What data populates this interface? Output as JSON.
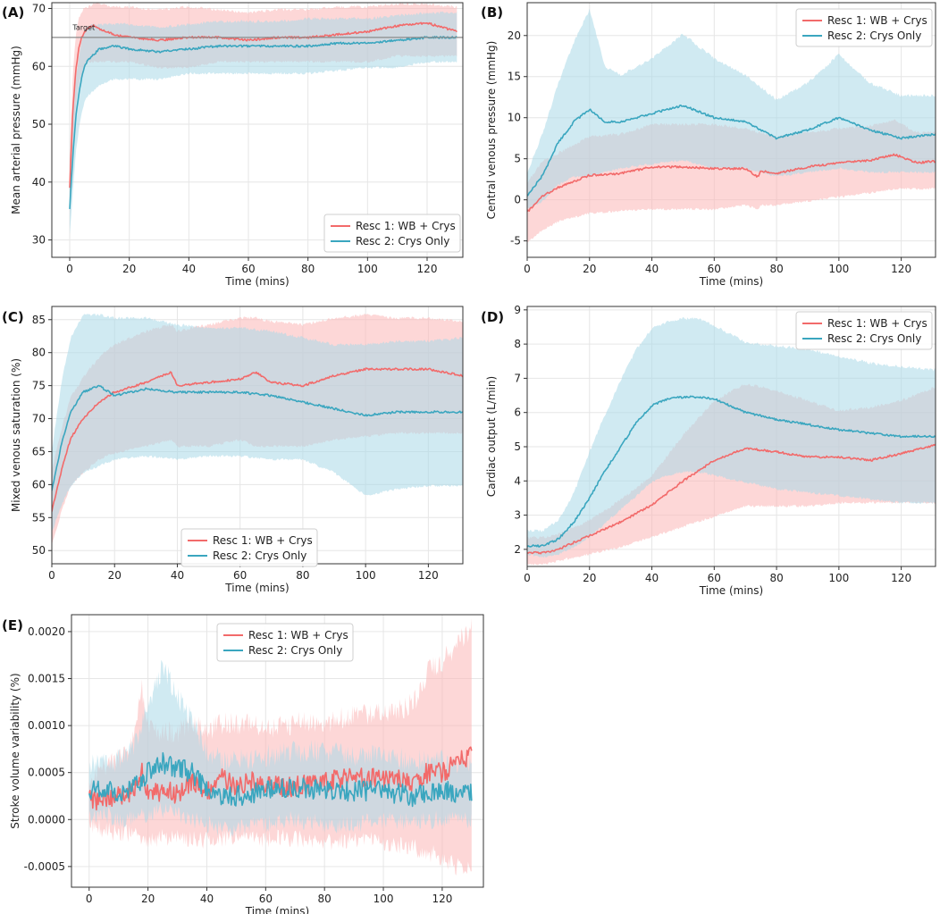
{
  "figure": {
    "colors": {
      "series1": "#f26a6a",
      "series2": "#3aa6bf",
      "band1": "#fbb6b6",
      "band2": "#a9d9e8"
    }
  },
  "chart_data": [
    {
      "id": "A",
      "panel_label": "(A)",
      "type": "line",
      "xlabel": "Time (mins)",
      "ylabel": "Mean arterial pressure (mmHg)",
      "xlim": [
        -6,
        132
      ],
      "ylim": [
        27,
        71
      ],
      "xticks": [
        0,
        20,
        40,
        60,
        80,
        100,
        120
      ],
      "yticks": [
        30,
        40,
        50,
        60,
        70
      ],
      "grid": true,
      "legend_position": "bottom-right",
      "annotation": {
        "text": "Target",
        "x": 1,
        "y": 66.3
      },
      "reference_line": {
        "y": 65,
        "label": "Target"
      },
      "series": [
        {
          "name": "Resc 1: WB + Crys",
          "color": "#f26a6a",
          "band_color": "#fbb6b6",
          "x": [
            0,
            1,
            2,
            3,
            4,
            5,
            6,
            8,
            10,
            15,
            20,
            30,
            40,
            50,
            60,
            70,
            80,
            90,
            100,
            110,
            120,
            130
          ],
          "mean": [
            39,
            52,
            59,
            63,
            65,
            66,
            66.5,
            67,
            66.5,
            65.5,
            65,
            64.5,
            65,
            65,
            64.5,
            65,
            65,
            65.5,
            66,
            67,
            67.5,
            66
          ],
          "lower": [
            34,
            46,
            53,
            57,
            59,
            60,
            61,
            61,
            61,
            61,
            61,
            60,
            60,
            61,
            61,
            61,
            61,
            61,
            61,
            62,
            62,
            62
          ],
          "upper": [
            44,
            58,
            65,
            68,
            69,
            70,
            70,
            70.5,
            70.5,
            70,
            70,
            69.5,
            70,
            69.5,
            69,
            69.5,
            69.5,
            70,
            70,
            70.5,
            70.5,
            70
          ]
        },
        {
          "name": "Resc 2: Crys Only",
          "color": "#3aa6bf",
          "band_color": "#a9d9e8",
          "x": [
            0,
            1,
            2,
            3,
            4,
            5,
            6,
            8,
            10,
            15,
            20,
            30,
            40,
            50,
            60,
            70,
            80,
            90,
            100,
            110,
            120,
            130
          ],
          "mean": [
            35.5,
            44,
            51,
            55,
            58,
            60,
            61,
            62,
            63,
            63.5,
            63,
            62.5,
            63,
            63.5,
            63.5,
            63.5,
            63.5,
            64,
            64,
            64.5,
            65,
            65
          ],
          "lower": [
            31,
            38,
            45,
            49,
            52,
            54,
            55,
            56,
            57,
            58,
            58,
            58,
            59,
            59,
            59,
            59,
            59,
            59.5,
            60,
            60,
            61,
            61
          ],
          "upper": [
            40,
            50,
            57,
            61,
            64,
            66,
            66.5,
            67,
            67,
            67,
            67,
            66.5,
            67,
            67.5,
            67.5,
            67.5,
            68,
            68,
            68,
            68.5,
            69,
            69
          ]
        }
      ]
    },
    {
      "id": "B",
      "panel_label": "(B)",
      "type": "line",
      "xlabel": "Time (mins)",
      "ylabel": "Central venous pressure (mmHg)",
      "xlim": [
        0,
        131
      ],
      "ylim": [
        -7,
        24
      ],
      "xticks": [
        0,
        20,
        40,
        60,
        80,
        100,
        120
      ],
      "yticks": [
        -5,
        0,
        5,
        10,
        15,
        20
      ],
      "grid": true,
      "legend_position": "top-right",
      "series": [
        {
          "name": "Resc 1: WB + Crys",
          "color": "#f26a6a",
          "band_color": "#fbb6b6",
          "x": [
            0,
            5,
            10,
            20,
            30,
            40,
            50,
            60,
            70,
            74,
            75,
            80,
            90,
            100,
            110,
            118,
            125,
            131
          ],
          "mean": [
            -1.5,
            0.5,
            1.5,
            3,
            3.2,
            4,
            4,
            3.8,
            3.8,
            2.8,
            3.5,
            3.2,
            4,
            4.5,
            4.8,
            5.5,
            4.5,
            4.7
          ],
          "lower": [
            -5,
            -3.5,
            -2.5,
            -1.5,
            -1.2,
            -1,
            -1,
            -1,
            -0.5,
            -1,
            -0.5,
            -0.5,
            0,
            0.5,
            1,
            1.5,
            1.5,
            1.5
          ],
          "upper": [
            2,
            4.5,
            5.5,
            7.5,
            7.8,
            9,
            9,
            9,
            8.5,
            8,
            8,
            7.5,
            8,
            8.5,
            8.8,
            9.5,
            8,
            8
          ]
        },
        {
          "name": "Resc 2: Crys Only",
          "color": "#3aa6bf",
          "band_color": "#a9d9e8",
          "x": [
            0,
            5,
            10,
            15,
            20,
            25,
            30,
            40,
            50,
            60,
            70,
            75,
            80,
            90,
            100,
            110,
            120,
            131
          ],
          "mean": [
            0.5,
            3,
            7,
            9.5,
            11,
            9.5,
            9.5,
            10.5,
            11.5,
            10,
            9.5,
            8.5,
            7.5,
            8.5,
            10,
            8.5,
            7.5,
            8
          ],
          "lower": [
            -1,
            0,
            2,
            3,
            3,
            3.5,
            4,
            4.5,
            5,
            4,
            4,
            3.5,
            3,
            3.5,
            4,
            3.5,
            3.5,
            3.5
          ],
          "upper": [
            3,
            8,
            14,
            19,
            23,
            16,
            15,
            17,
            20,
            17,
            15,
            13.5,
            12,
            14,
            17.5,
            14,
            12.5,
            12.5
          ]
        }
      ]
    },
    {
      "id": "C",
      "panel_label": "(C)",
      "type": "line",
      "xlabel": "Time (mins)",
      "ylabel": "Mixed venous saturation (%)",
      "xlim": [
        0,
        131
      ],
      "ylim": [
        48,
        87
      ],
      "xticks": [
        0,
        20,
        40,
        60,
        80,
        100,
        120
      ],
      "yticks": [
        50,
        55,
        60,
        65,
        70,
        75,
        80,
        85
      ],
      "grid": true,
      "legend_position": "bottom-center",
      "series": [
        {
          "name": "Resc 1: WB + Crys",
          "color": "#f26a6a",
          "band_color": "#fbb6b6",
          "x": [
            0,
            3,
            6,
            10,
            15,
            20,
            30,
            38,
            40,
            50,
            60,
            65,
            70,
            80,
            90,
            100,
            110,
            120,
            131
          ],
          "mean": [
            56,
            62,
            67,
            70,
            72.5,
            74,
            75.5,
            77,
            75,
            75.5,
            76,
            77,
            75.5,
            75,
            76.5,
            77.5,
            77.5,
            77.5,
            76.5
          ],
          "lower": [
            51,
            56,
            60,
            62,
            64,
            65,
            66,
            67,
            66,
            66,
            67,
            66,
            66,
            66,
            67,
            67.5,
            68,
            68,
            68
          ],
          "upper": [
            62,
            68,
            73,
            76,
            79,
            81,
            83,
            84,
            83,
            84,
            85,
            85,
            84.5,
            84,
            85,
            85.5,
            85,
            85,
            84.5
          ]
        },
        {
          "name": "Resc 2: Crys Only",
          "color": "#3aa6bf",
          "band_color": "#a9d9e8",
          "x": [
            0,
            3,
            6,
            10,
            15,
            20,
            30,
            40,
            50,
            60,
            70,
            80,
            90,
            100,
            110,
            120,
            131
          ],
          "mean": [
            59,
            66,
            71,
            74,
            75,
            73.5,
            74.5,
            74,
            74,
            74,
            73.5,
            72.5,
            71.5,
            70.5,
            71,
            71,
            71
          ],
          "lower": [
            53,
            57,
            60,
            62,
            63,
            64,
            64.5,
            64,
            64.5,
            64.5,
            64,
            64,
            62,
            58.5,
            59.5,
            60,
            60
          ],
          "upper": [
            65,
            75,
            82,
            85.5,
            85.5,
            85,
            85,
            84,
            83.5,
            83.5,
            83,
            82,
            81,
            81,
            81.5,
            81.5,
            82
          ]
        }
      ]
    },
    {
      "id": "D",
      "panel_label": "(D)",
      "type": "line",
      "xlabel": "Time (mins)",
      "ylabel": "Cardiac output (L/min)",
      "xlim": [
        0,
        131
      ],
      "ylim": [
        1.5,
        9.1
      ],
      "xticks": [
        0,
        20,
        40,
        60,
        80,
        100,
        120
      ],
      "yticks": [
        2,
        3,
        4,
        5,
        6,
        7,
        8,
        9
      ],
      "grid": true,
      "legend_position": "top-right",
      "series": [
        {
          "name": "Resc 1: WB + Crys",
          "color": "#f26a6a",
          "band_color": "#fbb6b6",
          "x": [
            0,
            5,
            10,
            20,
            30,
            40,
            50,
            60,
            70,
            80,
            90,
            100,
            110,
            120,
            131
          ],
          "mean": [
            1.9,
            1.9,
            2.0,
            2.4,
            2.8,
            3.3,
            4.0,
            4.6,
            4.95,
            4.85,
            4.7,
            4.7,
            4.6,
            4.8,
            5.05
          ],
          "lower": [
            1.6,
            1.6,
            1.7,
            1.9,
            2.1,
            2.4,
            2.7,
            3.0,
            3.3,
            3.3,
            3.3,
            3.4,
            3.4,
            3.4,
            3.4
          ],
          "upper": [
            2.3,
            2.3,
            2.4,
            2.8,
            3.4,
            4.1,
            5.3,
            6.3,
            6.8,
            6.6,
            6.3,
            6.0,
            6.1,
            6.3,
            6.7
          ]
        },
        {
          "name": "Resc 2: Crys Only",
          "color": "#3aa6bf",
          "band_color": "#a9d9e8",
          "x": [
            0,
            5,
            10,
            15,
            20,
            25,
            30,
            35,
            40,
            45,
            50,
            55,
            60,
            70,
            80,
            90,
            100,
            110,
            120,
            131
          ],
          "mean": [
            2.1,
            2.1,
            2.3,
            2.8,
            3.5,
            4.3,
            5.0,
            5.7,
            6.2,
            6.4,
            6.45,
            6.45,
            6.4,
            6.0,
            5.8,
            5.65,
            5.5,
            5.4,
            5.3,
            5.3
          ],
          "lower": [
            1.9,
            1.8,
            1.9,
            2.1,
            2.4,
            2.8,
            3.2,
            3.6,
            4.0,
            4.2,
            4.3,
            4.3,
            4.2,
            4.0,
            3.8,
            3.7,
            3.6,
            3.5,
            3.4,
            3.4
          ],
          "upper": [
            2.5,
            2.5,
            2.8,
            3.6,
            4.8,
            5.9,
            6.9,
            7.8,
            8.4,
            8.6,
            8.7,
            8.7,
            8.5,
            8.0,
            7.9,
            7.8,
            7.6,
            7.4,
            7.3,
            7.2
          ]
        }
      ]
    },
    {
      "id": "E",
      "panel_label": "(E)",
      "type": "line",
      "xlabel": "Time (mins)",
      "ylabel": "Stroke volume variability (%)",
      "xlim": [
        -6,
        134
      ],
      "ylim": [
        -0.00072,
        0.00218
      ],
      "xticks": [
        0,
        20,
        40,
        60,
        80,
        100,
        120
      ],
      "yticks": [
        -0.0005,
        0.0,
        0.0005,
        0.001,
        0.0015,
        0.002
      ],
      "ytick_labels": [
        "-0.0005",
        "0.0000",
        "0.0005",
        "0.0010",
        "0.0015",
        "0.0020"
      ],
      "grid": true,
      "legend_position": "top-center",
      "series": [
        {
          "name": "Resc 1: WB + Crys",
          "color": "#f26a6a",
          "band_color": "#fbb6b6",
          "x": [
            0,
            5,
            10,
            15,
            18,
            20,
            25,
            30,
            35,
            40,
            45,
            50,
            55,
            60,
            70,
            80,
            90,
            100,
            110,
            115,
            120,
            125,
            130
          ],
          "mean": [
            0.0002,
            0.00022,
            0.00025,
            0.0003,
            0.0005,
            0.0003,
            0.0003,
            0.00028,
            0.0004,
            0.0003,
            0.00045,
            0.00035,
            0.0004,
            0.00035,
            0.00035,
            0.0004,
            0.00045,
            0.00045,
            0.0004,
            0.0005,
            0.0005,
            0.0006,
            0.0007
          ],
          "lower": [
            5e-05,
            0.0,
            -5e-05,
            -5e-05,
            -0.0001,
            -0.0001,
            -0.0001,
            -0.0001,
            -0.0001,
            -0.00012,
            -0.0001,
            -0.0001,
            -0.0001,
            -0.0001,
            -0.0001,
            -0.00015,
            -0.0001,
            -0.00015,
            -0.0002,
            -0.00025,
            -0.0003,
            -0.0004,
            -0.00045
          ],
          "upper": [
            0.00035,
            0.0004,
            0.00055,
            0.0007,
            0.00125,
            0.0009,
            0.0008,
            0.0008,
            0.0009,
            0.0008,
            0.0009,
            0.0009,
            0.0009,
            0.00085,
            0.0009,
            0.0009,
            0.001,
            0.001,
            0.0011,
            0.00145,
            0.00155,
            0.00175,
            0.0019
          ]
        },
        {
          "name": "Resc 2: Crys Only",
          "color": "#3aa6bf",
          "band_color": "#a9d9e8",
          "x": [
            0,
            5,
            10,
            15,
            20,
            25,
            30,
            35,
            40,
            45,
            50,
            60,
            70,
            80,
            90,
            100,
            110,
            120,
            130
          ],
          "mean": [
            0.0003,
            0.00035,
            0.0003,
            0.00035,
            0.0005,
            0.0006,
            0.00055,
            0.0005,
            0.0003,
            0.00025,
            0.00025,
            0.0003,
            0.00035,
            0.0003,
            0.0003,
            0.0003,
            0.00025,
            0.0003,
            0.00028
          ],
          "lower": [
            0.00012,
            0.00015,
            0.0001,
            0.0001,
            0.00015,
            0.0002,
            0.00015,
            0.0001,
            5e-05,
            0.0,
            0.0,
            5e-05,
            0.0001,
            5e-05,
            5e-05,
            0.0001,
            8e-05,
            0.0001,
            0.0001
          ],
          "upper": [
            0.00045,
            0.0005,
            0.0005,
            0.0006,
            0.0011,
            0.0015,
            0.0012,
            0.0009,
            0.0006,
            0.0005,
            0.0005,
            0.00055,
            0.0006,
            0.0006,
            0.00055,
            0.00055,
            0.0005,
            0.0005,
            0.00045
          ]
        }
      ]
    }
  ]
}
